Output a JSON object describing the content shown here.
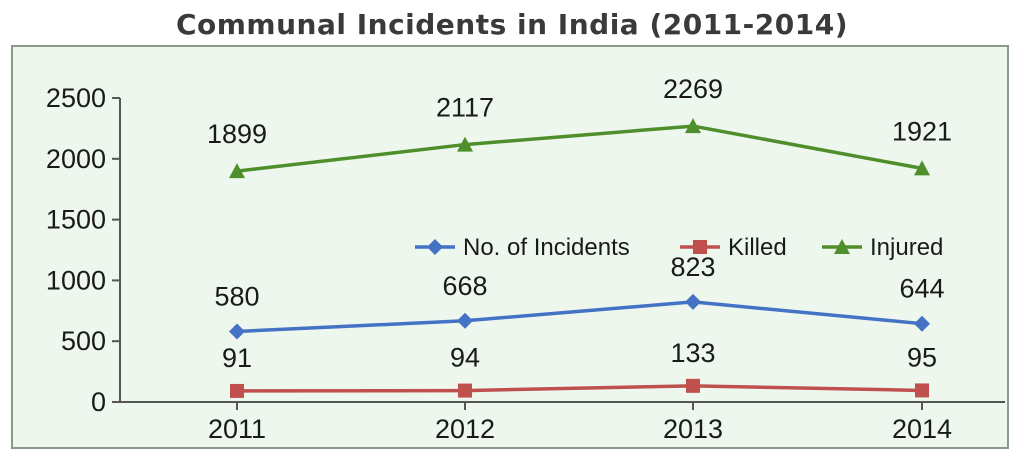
{
  "chart_data": {
    "type": "line",
    "title": "Communal Incidents in India (2011-2014)",
    "xlabel": "",
    "ylabel": "",
    "categories": [
      "2011",
      "2012",
      "2013",
      "2014"
    ],
    "ylim": [
      0,
      2500
    ],
    "yticks": [
      0,
      500,
      1000,
      1500,
      2000,
      2500
    ],
    "grid": false,
    "legend_position": "middle-right",
    "series": [
      {
        "name": "No. of Incidents",
        "values": [
          580,
          668,
          823,
          644
        ],
        "color": "#4472c4",
        "marker": "diamond"
      },
      {
        "name": "Killed",
        "values": [
          91,
          94,
          133,
          95
        ],
        "color": "#c0504d",
        "marker": "square"
      },
      {
        "name": "Injured",
        "values": [
          1899,
          2117,
          2269,
          1921
        ],
        "color": "#4e8f2c",
        "marker": "triangle"
      }
    ],
    "colors": {
      "plot_background": "#eef7ee",
      "border": "#8a9a8a"
    }
  }
}
